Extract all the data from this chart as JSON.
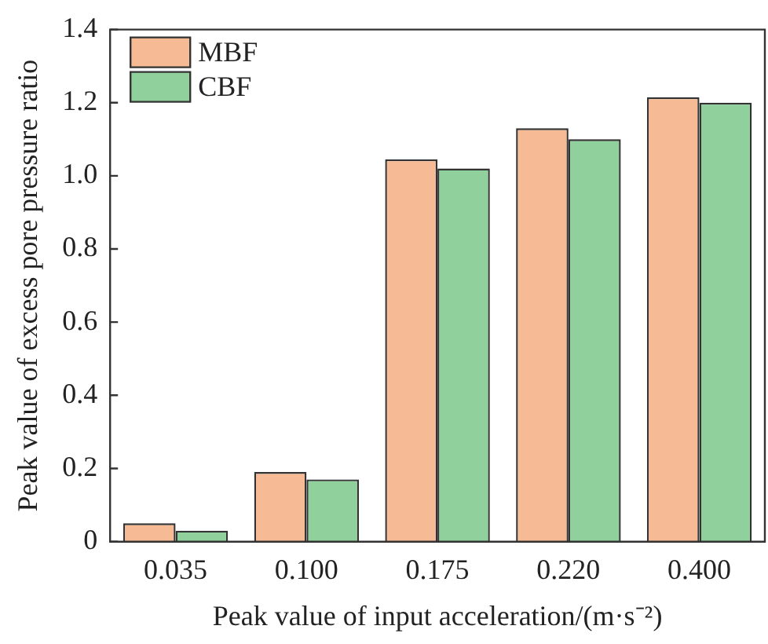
{
  "chart_data": {
    "type": "bar",
    "xlabel": "Peak value of input acceleration/(m·s⁻²)",
    "ylabel": "Peak value of excess pore pressure ratio",
    "categories": [
      "0.035",
      "0.100",
      "0.175",
      "0.220",
      "0.400"
    ],
    "series": [
      {
        "name": "MBF",
        "color": "#f6bb95",
        "values": [
          0.05,
          0.19,
          1.045,
          1.13,
          1.215
        ]
      },
      {
        "name": "CBF",
        "color": "#90d09d",
        "values": [
          0.03,
          0.17,
          1.02,
          1.1,
          1.2
        ]
      }
    ],
    "ylim": [
      0,
      1.4
    ],
    "yticks": [
      {
        "value": 0,
        "label": "0"
      },
      0.2,
      0.4,
      0.6,
      0.8,
      {
        "value": 1,
        "label": "1.0"
      },
      1.2,
      1.4
    ],
    "legend": "top left"
  }
}
